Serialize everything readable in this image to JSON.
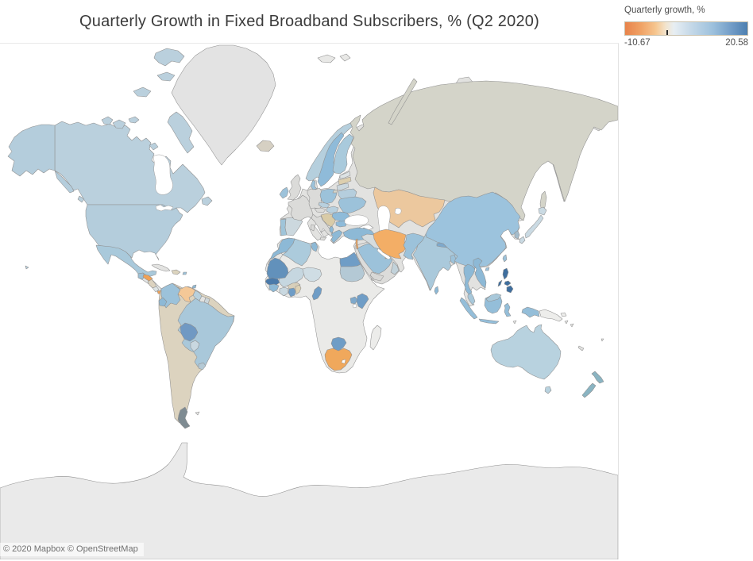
{
  "title": "Quarterly Growth in Fixed Broadband Subscribers, % (Q2 2020)",
  "legend": {
    "title": "Quarterly growth, %",
    "min_label": "-10.67",
    "max_label": "20.58",
    "tick_percent": 34,
    "gradient": [
      "#e8834b 0%",
      "#f0a265 13%",
      "#f6c68f 25%",
      "#f3e3cb 33%",
      "#e7eef3 40%",
      "#c2d7e7 55%",
      "#9cc0dc 72%",
      "#6f9ac5 88%",
      "#4d7fb0 100%"
    ]
  },
  "attribution": {
    "text": "© 2020 Mapbox © OpenStreetMap"
  },
  "map": {
    "ocean": "#ffffff",
    "colors": {
      "antarctica": "#eaeaea",
      "greenland": "#e3e3e3",
      "iceland": "#d6d0c3",
      "svalbard": "#e8e8e6",
      "eurasia_nodata": "#e2e2e0",
      "africa_nodata": "#eaeae8",
      "central_america_nodata": "#e3e6e6",
      "south_america_tan": "#dcd3bf",
      "arabia_nodata": "#dcdcda",
      "canada": "#bad0dd",
      "usa": "#b4cddc",
      "mexico": "#a9c9db",
      "guatemala": "#9cc0d6",
      "honduras": "#f0a156",
      "nicaragua": "#dcd3c0",
      "costa_rica": "#dde4e6",
      "panama": "#f0a156",
      "cuba": "#e3e3e1",
      "hispaniola": "#dcd4be",
      "puerto_rico": "#9cc2da",
      "trinidad": "#8db9d6",
      "colombia": "#9cc2da",
      "venezuela": "#f4c897",
      "guyana": "#b8d0dc",
      "suriname": "#e2e2e0",
      "french_guiana": "#ccd6da",
      "ecuador": "#8db9d6",
      "brazil": "#a9c8da",
      "bolivia": "#7099c3",
      "paraguay": "#c9d8e0",
      "uruguay": "#b4c9d5",
      "patagonia_tip": "#7e8b92",
      "falklands": "#e8e8e6",
      "ireland": "#9cc2da",
      "uk": "#dbdbd9",
      "portugal": "#9fc4d9",
      "spain": "#ccd8de",
      "france": "#dbdbd9",
      "germany": "#dbdbd9",
      "italy": "#dbdbd9",
      "austria": "#dbdbd9",
      "czech": "#b8d0de",
      "hungary": "#b8d0de",
      "denmark": "#9cc2da",
      "norway": "#b5cfdd",
      "sweden": "#8fbbd9",
      "finland": "#a9cadc",
      "estonia": "#dce2e4",
      "latvia": "#ddcfae",
      "lithuania": "#ccd8de",
      "belarus": "#b5cedd",
      "poland": "#9cc2da",
      "balkans": "#d9cba7",
      "albania": "#8db9d6",
      "greece": "#8db9d6",
      "bulgaria": "#8fbbd9",
      "romania": "#8fbbd9",
      "ukraine": "#9cc2da",
      "russia": "#d4d4c9",
      "kazakhstan": "#ecc89e",
      "turkey": "#8db9d6",
      "morocco": "#8db9d6",
      "western_sahara": "#e6e6e4",
      "algeria": "#accbdc",
      "tunisia": "#8db9d6",
      "egypt": "#6f9dc6",
      "mauritania": "#6291bb",
      "senegal": "#4a7aaa",
      "mali": "#c6d7e0",
      "niger": "#cfdde4",
      "burkina_faso": "#d8cfba",
      "guinea": "#8db9d6",
      "cote_divoire": "#c9d8e0",
      "ghana": "#6f9dc6",
      "togo_benin": "#ddd1b4",
      "cameroon": "#6f9dc6",
      "sudan": "#b4c9d5",
      "uganda": "#7fa9cb",
      "kenya": "#6f9dc6",
      "botswana": "#6f9dc6",
      "south_africa": "#f0a85c",
      "madagascar": "#ececea",
      "israel": "#f1a45a",
      "qatar": "#f1a45a",
      "iraq": "#d6dcde",
      "saudi_arabia": "#9cc2da",
      "oman": "#c2d2da",
      "yemen": "#d8d8d6",
      "iran": "#f3ae66",
      "pakistan": "#9cc2da",
      "india": "#aac9db",
      "nepal": "#7fa9cb",
      "bangladesh": "#9cc2da",
      "sri_lanka": "#8db9d6",
      "china": "#9cc3dd",
      "south_korea": "#a4bccb",
      "japan": "#cadae3",
      "taiwan": "#9cc2da",
      "thailand": "#8db9d6",
      "vietnam": "#8db9d6",
      "malaysia": "#a8c8da",
      "philippines": "#3f6f9f",
      "indonesia": "#94bed9",
      "papua_new_guinea": "#ededeb",
      "east_timor": "#e6e6e4",
      "australia": "#b8d2df",
      "new_zealand": "#8ab4c2",
      "new_caledonia": "#e4e4e2",
      "pacific_islands": "#e6e6e4"
    }
  }
}
